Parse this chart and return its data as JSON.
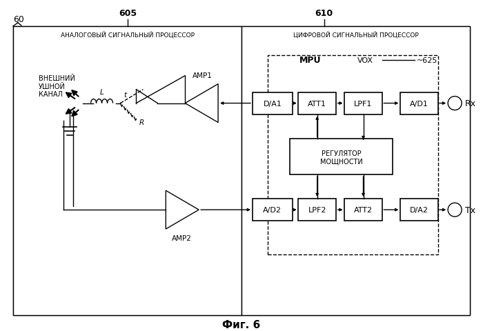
{
  "title": "Фиг. 6",
  "label_60": "60",
  "label_605": "605",
  "label_610": "610",
  "label_625": "~625",
  "analog_label": "АНАЛОГОВЫЙ СИГНАЛЬНЫЙ ПРОЦЕССОР",
  "digital_label": "ЦИФРОВОЙ СИГНАЛЬНЫЙ ПРОЦЕССОР",
  "mpu_label": "MPU",
  "vox_label": "VOX",
  "ear_label": "ВНЕШНИЙ\nУШНОЙ\nКАНАЛ",
  "reg_label": "РЕГУЛЯТОР\nМОЩНОСТИ",
  "background": "#ffffff",
  "line_color": "#000000",
  "lw": 1.0
}
